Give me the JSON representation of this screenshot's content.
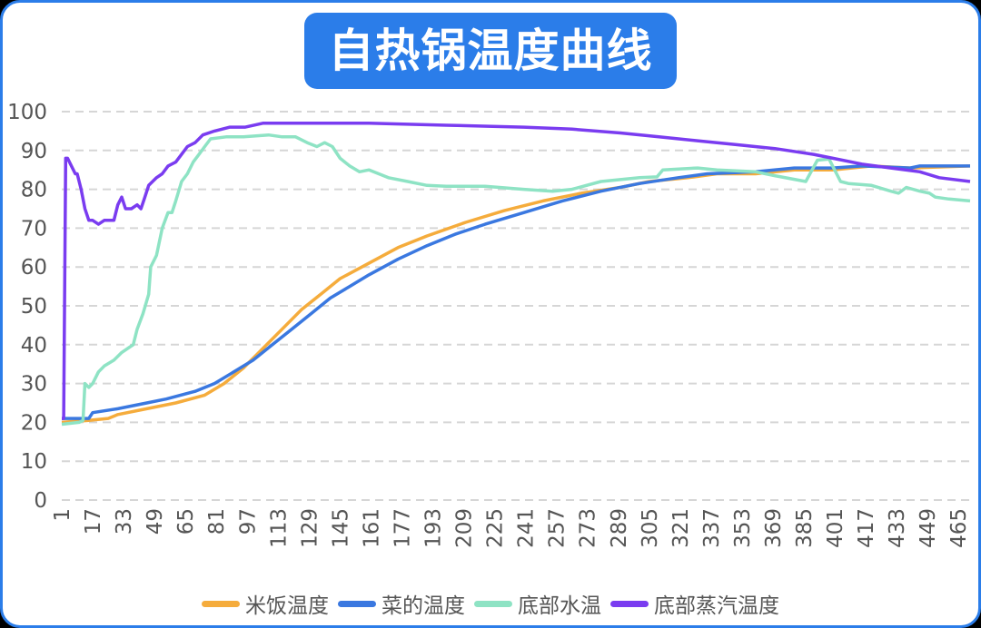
{
  "title": "自热锅温度曲线",
  "chart_data": {
    "type": "line",
    "title": "自热锅温度曲线",
    "xlim": [
      1,
      471
    ],
    "ylim": [
      0,
      100
    ],
    "grid": true,
    "legend_position": "bottom",
    "y_ticks": [
      "0",
      "10",
      "20",
      "30",
      "40",
      "50",
      "60",
      "70",
      "80",
      "90",
      "100"
    ],
    "x_ticks": [
      "1",
      "17",
      "33",
      "49",
      "65",
      "81",
      "97",
      "113",
      "129",
      "145",
      "161",
      "177",
      "193",
      "209",
      "225",
      "241",
      "257",
      "273",
      "289",
      "305",
      "321",
      "337",
      "353",
      "369",
      "385",
      "401",
      "417",
      "433",
      "449",
      "465"
    ],
    "series": [
      {
        "name": "米饭温度",
        "color": "#f5ac3c",
        "points": [
          [
            1,
            20
          ],
          [
            15,
            20.5
          ],
          [
            25,
            21
          ],
          [
            30,
            22
          ],
          [
            45,
            23.5
          ],
          [
            60,
            25
          ],
          [
            75,
            27
          ],
          [
            85,
            30
          ],
          [
            95,
            34
          ],
          [
            105,
            39
          ],
          [
            115,
            44
          ],
          [
            125,
            49
          ],
          [
            135,
            53
          ],
          [
            145,
            57
          ],
          [
            160,
            61
          ],
          [
            175,
            65
          ],
          [
            190,
            68
          ],
          [
            210,
            71.5
          ],
          [
            230,
            74.5
          ],
          [
            250,
            77
          ],
          [
            270,
            79
          ],
          [
            290,
            80.5
          ],
          [
            305,
            82
          ],
          [
            325,
            83
          ],
          [
            340,
            84
          ],
          [
            360,
            84
          ],
          [
            380,
            85
          ],
          [
            400,
            85
          ],
          [
            420,
            86
          ],
          [
            440,
            85.5
          ],
          [
            471,
            86
          ]
        ]
      },
      {
        "name": "菜的温度",
        "color": "#3a78e0",
        "points": [
          [
            1,
            21
          ],
          [
            15,
            21
          ],
          [
            17,
            22.5
          ],
          [
            30,
            23.5
          ],
          [
            45,
            25
          ],
          [
            55,
            26
          ],
          [
            70,
            28
          ],
          [
            80,
            30
          ],
          [
            90,
            33
          ],
          [
            100,
            36
          ],
          [
            110,
            40
          ],
          [
            120,
            44
          ],
          [
            130,
            48
          ],
          [
            140,
            52
          ],
          [
            150,
            55
          ],
          [
            160,
            58
          ],
          [
            175,
            62
          ],
          [
            190,
            65.5
          ],
          [
            205,
            68.5
          ],
          [
            220,
            71
          ],
          [
            240,
            74
          ],
          [
            260,
            77
          ],
          [
            280,
            79.5
          ],
          [
            300,
            81.5
          ],
          [
            320,
            83
          ],
          [
            335,
            84
          ],
          [
            360,
            84.5
          ],
          [
            380,
            85.5
          ],
          [
            400,
            85.5
          ],
          [
            415,
            86
          ],
          [
            440,
            85.5
          ],
          [
            445,
            86
          ],
          [
            471,
            86
          ]
        ]
      },
      {
        "name": "底部水温",
        "color": "#8ee3c4",
        "points": [
          [
            1,
            19.5
          ],
          [
            10,
            20
          ],
          [
            12,
            20.5
          ],
          [
            13,
            30
          ],
          [
            15,
            29
          ],
          [
            17,
            30
          ],
          [
            20,
            33
          ],
          [
            23,
            34.5
          ],
          [
            28,
            36
          ],
          [
            32,
            38
          ],
          [
            38,
            40
          ],
          [
            40,
            44
          ],
          [
            43,
            48
          ],
          [
            46,
            53
          ],
          [
            47,
            60
          ],
          [
            50,
            63
          ],
          [
            53,
            70
          ],
          [
            56,
            74
          ],
          [
            58,
            74
          ],
          [
            60,
            77
          ],
          [
            63,
            82
          ],
          [
            66,
            84
          ],
          [
            69,
            87
          ],
          [
            72,
            89
          ],
          [
            75,
            91
          ],
          [
            78,
            93
          ],
          [
            86,
            93.5
          ],
          [
            95,
            93.5
          ],
          [
            108,
            94
          ],
          [
            115,
            93.5
          ],
          [
            122,
            93.5
          ],
          [
            128,
            92
          ],
          [
            133,
            91
          ],
          [
            137,
            92
          ],
          [
            141,
            91
          ],
          [
            145,
            88
          ],
          [
            150,
            86
          ],
          [
            155,
            84.5
          ],
          [
            160,
            85
          ],
          [
            170,
            83
          ],
          [
            180,
            82
          ],
          [
            190,
            81
          ],
          [
            200,
            80.8
          ],
          [
            220,
            80.8
          ],
          [
            240,
            80
          ],
          [
            255,
            79.5
          ],
          [
            265,
            80
          ],
          [
            280,
            82
          ],
          [
            300,
            83
          ],
          [
            309,
            83.2
          ],
          [
            312,
            85
          ],
          [
            330,
            85.5
          ],
          [
            340,
            85
          ],
          [
            360,
            84.5
          ],
          [
            370,
            83.5
          ],
          [
            386,
            82
          ],
          [
            392,
            87.5
          ],
          [
            398,
            87.8
          ],
          [
            404,
            82
          ],
          [
            408,
            81.5
          ],
          [
            420,
            81
          ],
          [
            430,
            79.5
          ],
          [
            434,
            79
          ],
          [
            438,
            80.5
          ],
          [
            445,
            79.5
          ],
          [
            450,
            79
          ],
          [
            453,
            78
          ],
          [
            460,
            77.5
          ],
          [
            471,
            77
          ]
        ]
      },
      {
        "name": "底部蒸汽温度",
        "color": "#7a3cf0",
        "points": [
          [
            1,
            21
          ],
          [
            2,
            21
          ],
          [
            3,
            88
          ],
          [
            4,
            88
          ],
          [
            6,
            86
          ],
          [
            8,
            84
          ],
          [
            9,
            84
          ],
          [
            11,
            80
          ],
          [
            13,
            75
          ],
          [
            15,
            72
          ],
          [
            17,
            72
          ],
          [
            20,
            71
          ],
          [
            23,
            72
          ],
          [
            26,
            72
          ],
          [
            28,
            72
          ],
          [
            30,
            76
          ],
          [
            32,
            78
          ],
          [
            34,
            75
          ],
          [
            37,
            75
          ],
          [
            40,
            76
          ],
          [
            42,
            75
          ],
          [
            44,
            78
          ],
          [
            46,
            81
          ],
          [
            50,
            83
          ],
          [
            53,
            84
          ],
          [
            56,
            86
          ],
          [
            60,
            87
          ],
          [
            63,
            89
          ],
          [
            66,
            91
          ],
          [
            70,
            92
          ],
          [
            74,
            94
          ],
          [
            80,
            95
          ],
          [
            88,
            96
          ],
          [
            96,
            96
          ],
          [
            105,
            97
          ],
          [
            120,
            97
          ],
          [
            160,
            97
          ],
          [
            200,
            96.5
          ],
          [
            240,
            96
          ],
          [
            265,
            95.5
          ],
          [
            290,
            94.5
          ],
          [
            310,
            93.5
          ],
          [
            330,
            92.5
          ],
          [
            350,
            91.5
          ],
          [
            370,
            90.5
          ],
          [
            390,
            89
          ],
          [
            400,
            88
          ],
          [
            415,
            86.5
          ],
          [
            430,
            85.5
          ],
          [
            445,
            84.5
          ],
          [
            455,
            83
          ],
          [
            471,
            82
          ]
        ]
      }
    ]
  }
}
